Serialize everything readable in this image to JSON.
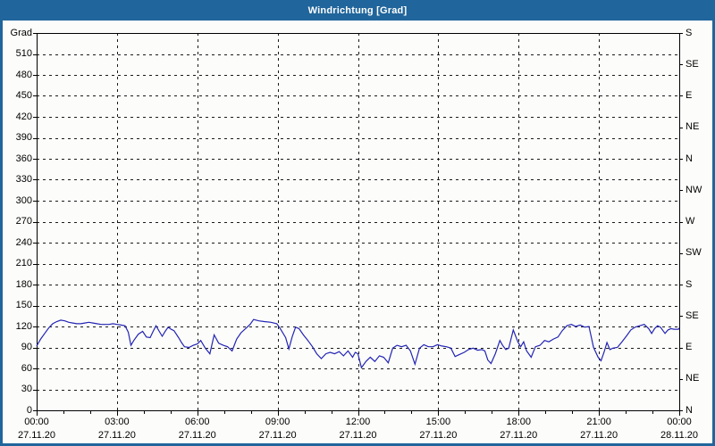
{
  "window": {
    "title": "Windrichtung [Grad]"
  },
  "colors": {
    "titlebar_bg": "#20659b",
    "titlebar_text": "#ffffff",
    "frame": "#20659b",
    "content_bg": "#fcfdfa",
    "plot_border": "#000000",
    "grid": "#1a1a1a",
    "series_line": "#2424b4",
    "label_text": "#000000"
  },
  "chart_data": {
    "type": "line",
    "title": "Windrichtung [Grad]",
    "grid": "dashed",
    "legend": "none",
    "ylim": [
      0,
      540
    ],
    "xlim_hours": [
      0,
      24
    ],
    "y_axis_left": {
      "unit_label": "Grad",
      "tick_step": 30,
      "tick_labels_top_to_bottom": [
        "Grad",
        "510",
        "480",
        "450",
        "420",
        "390",
        "360",
        "330",
        "300",
        "270",
        "240",
        "210",
        "180",
        "150",
        "120",
        "90",
        "60",
        "30",
        "0"
      ]
    },
    "y_axis_right": {
      "tick_step": 45,
      "tick_labels_top_to_bottom": [
        "S",
        "SE",
        "E",
        "NE",
        "N",
        "NW",
        "W",
        "SW",
        "S",
        "SE",
        "E",
        "NE",
        "N"
      ]
    },
    "x_axis": {
      "minor_tick_hours": 1,
      "major_tick_hours": 3,
      "ticks": [
        {
          "hour": 0,
          "time": "00:00",
          "date": "27.11.20"
        },
        {
          "hour": 3,
          "time": "03:00",
          "date": "27.11.20"
        },
        {
          "hour": 6,
          "time": "06:00",
          "date": "27.11.20"
        },
        {
          "hour": 9,
          "time": "09:00",
          "date": "27.11.20"
        },
        {
          "hour": 12,
          "time": "12:00",
          "date": "27.11.20"
        },
        {
          "hour": 15,
          "time": "15:00",
          "date": "27.11.20"
        },
        {
          "hour": 18,
          "time": "18:00",
          "date": "27.11.20"
        },
        {
          "hour": 21,
          "time": "21:00",
          "date": "27.11.20"
        },
        {
          "hour": 24,
          "time": "00:00",
          "date": "28.11.20"
        }
      ]
    },
    "series": [
      {
        "name": "Windrichtung",
        "unit": "Grad",
        "color": "#2424b4",
        "points_hour_value": [
          [
            0,
            92
          ],
          [
            0.15,
            102
          ],
          [
            0.3,
            110
          ],
          [
            0.45,
            118
          ],
          [
            0.6,
            124
          ],
          [
            0.75,
            127
          ],
          [
            0.9,
            129
          ],
          [
            1.05,
            128
          ],
          [
            1.2,
            126
          ],
          [
            1.35,
            125
          ],
          [
            1.5,
            124
          ],
          [
            1.65,
            124
          ],
          [
            1.8,
            125
          ],
          [
            1.95,
            126
          ],
          [
            2.1,
            125
          ],
          [
            2.25,
            124
          ],
          [
            2.4,
            123
          ],
          [
            2.55,
            123
          ],
          [
            2.7,
            123
          ],
          [
            2.85,
            124
          ],
          [
            3.0,
            123
          ],
          [
            3.15,
            122
          ],
          [
            3.3,
            121
          ],
          [
            3.42,
            112
          ],
          [
            3.52,
            93
          ],
          [
            3.63,
            100
          ],
          [
            3.8,
            109
          ],
          [
            3.96,
            113
          ],
          [
            4.1,
            105
          ],
          [
            4.24,
            104
          ],
          [
            4.35,
            113
          ],
          [
            4.46,
            121
          ],
          [
            4.58,
            113
          ],
          [
            4.69,
            106
          ],
          [
            4.8,
            113
          ],
          [
            4.91,
            119
          ],
          [
            5.02,
            116
          ],
          [
            5.13,
            114
          ],
          [
            5.3,
            104
          ],
          [
            5.41,
            97
          ],
          [
            5.52,
            91
          ],
          [
            5.69,
            90
          ],
          [
            5.85,
            93
          ],
          [
            6.0,
            95
          ],
          [
            6.13,
            100
          ],
          [
            6.3,
            89
          ],
          [
            6.47,
            81
          ],
          [
            6.63,
            108
          ],
          [
            6.8,
            96
          ],
          [
            6.97,
            93
          ],
          [
            7.13,
            91
          ],
          [
            7.3,
            85
          ],
          [
            7.47,
            102
          ],
          [
            7.63,
            111
          ],
          [
            7.8,
            117
          ],
          [
            7.97,
            123
          ],
          [
            8.1,
            130
          ],
          [
            8.3,
            128
          ],
          [
            8.5,
            127
          ],
          [
            8.75,
            126
          ],
          [
            8.97,
            124
          ],
          [
            9.1,
            117
          ],
          [
            9.3,
            104
          ],
          [
            9.42,
            88
          ],
          [
            9.55,
            106
          ],
          [
            9.67,
            119
          ],
          [
            9.8,
            117
          ],
          [
            9.96,
            108
          ],
          [
            10.13,
            100
          ],
          [
            10.3,
            91
          ],
          [
            10.46,
            81
          ],
          [
            10.63,
            74
          ],
          [
            10.8,
            81
          ],
          [
            10.96,
            83
          ],
          [
            11.13,
            81
          ],
          [
            11.3,
            84
          ],
          [
            11.46,
            78
          ],
          [
            11.63,
            85
          ],
          [
            11.8,
            76
          ],
          [
            11.9,
            83
          ],
          [
            12.0,
            81
          ],
          [
            12.13,
            61
          ],
          [
            12.3,
            70
          ],
          [
            12.46,
            76
          ],
          [
            12.63,
            70
          ],
          [
            12.8,
            78
          ],
          [
            12.96,
            76
          ],
          [
            13.13,
            68
          ],
          [
            13.3,
            89
          ],
          [
            13.46,
            93
          ],
          [
            13.63,
            91
          ],
          [
            13.8,
            93
          ],
          [
            13.96,
            85
          ],
          [
            14.13,
            66
          ],
          [
            14.3,
            89
          ],
          [
            14.46,
            94
          ],
          [
            14.63,
            91
          ],
          [
            14.8,
            91
          ],
          [
            14.97,
            94
          ],
          [
            15.13,
            92
          ],
          [
            15.3,
            91
          ],
          [
            15.47,
            89
          ],
          [
            15.63,
            77
          ],
          [
            15.8,
            80
          ],
          [
            15.97,
            83
          ],
          [
            16.13,
            87
          ],
          [
            16.3,
            89
          ],
          [
            16.47,
            86
          ],
          [
            16.63,
            87
          ],
          [
            16.74,
            85
          ],
          [
            16.85,
            72
          ],
          [
            16.97,
            67
          ],
          [
            17.13,
            81
          ],
          [
            17.3,
            100
          ],
          [
            17.4,
            93
          ],
          [
            17.52,
            87
          ],
          [
            17.63,
            89
          ],
          [
            17.8,
            115
          ],
          [
            17.97,
            98
          ],
          [
            18.08,
            91
          ],
          [
            18.19,
            98
          ],
          [
            18.3,
            85
          ],
          [
            18.47,
            76
          ],
          [
            18.63,
            91
          ],
          [
            18.8,
            93
          ],
          [
            18.97,
            100
          ],
          [
            19.13,
            98
          ],
          [
            19.3,
            102
          ],
          [
            19.47,
            105
          ],
          [
            19.63,
            114
          ],
          [
            19.8,
            121
          ],
          [
            19.97,
            123
          ],
          [
            20.13,
            120
          ],
          [
            20.3,
            122
          ],
          [
            20.47,
            119
          ],
          [
            20.63,
            120
          ],
          [
            20.8,
            90
          ],
          [
            20.97,
            76
          ],
          [
            21.08,
            71
          ],
          [
            21.19,
            83
          ],
          [
            21.3,
            97
          ],
          [
            21.41,
            87
          ],
          [
            21.52,
            89
          ],
          [
            21.69,
            90
          ],
          [
            21.86,
            98
          ],
          [
            22.02,
            106
          ],
          [
            22.19,
            115
          ],
          [
            22.35,
            119
          ],
          [
            22.52,
            121
          ],
          [
            22.69,
            123
          ],
          [
            22.86,
            117
          ],
          [
            22.97,
            110
          ],
          [
            23.08,
            117
          ],
          [
            23.19,
            121
          ],
          [
            23.3,
            119
          ],
          [
            23.47,
            110
          ],
          [
            23.58,
            115
          ],
          [
            23.69,
            117
          ],
          [
            23.8,
            116
          ],
          [
            23.97,
            116
          ],
          [
            24.0,
            118
          ]
        ]
      }
    ]
  }
}
